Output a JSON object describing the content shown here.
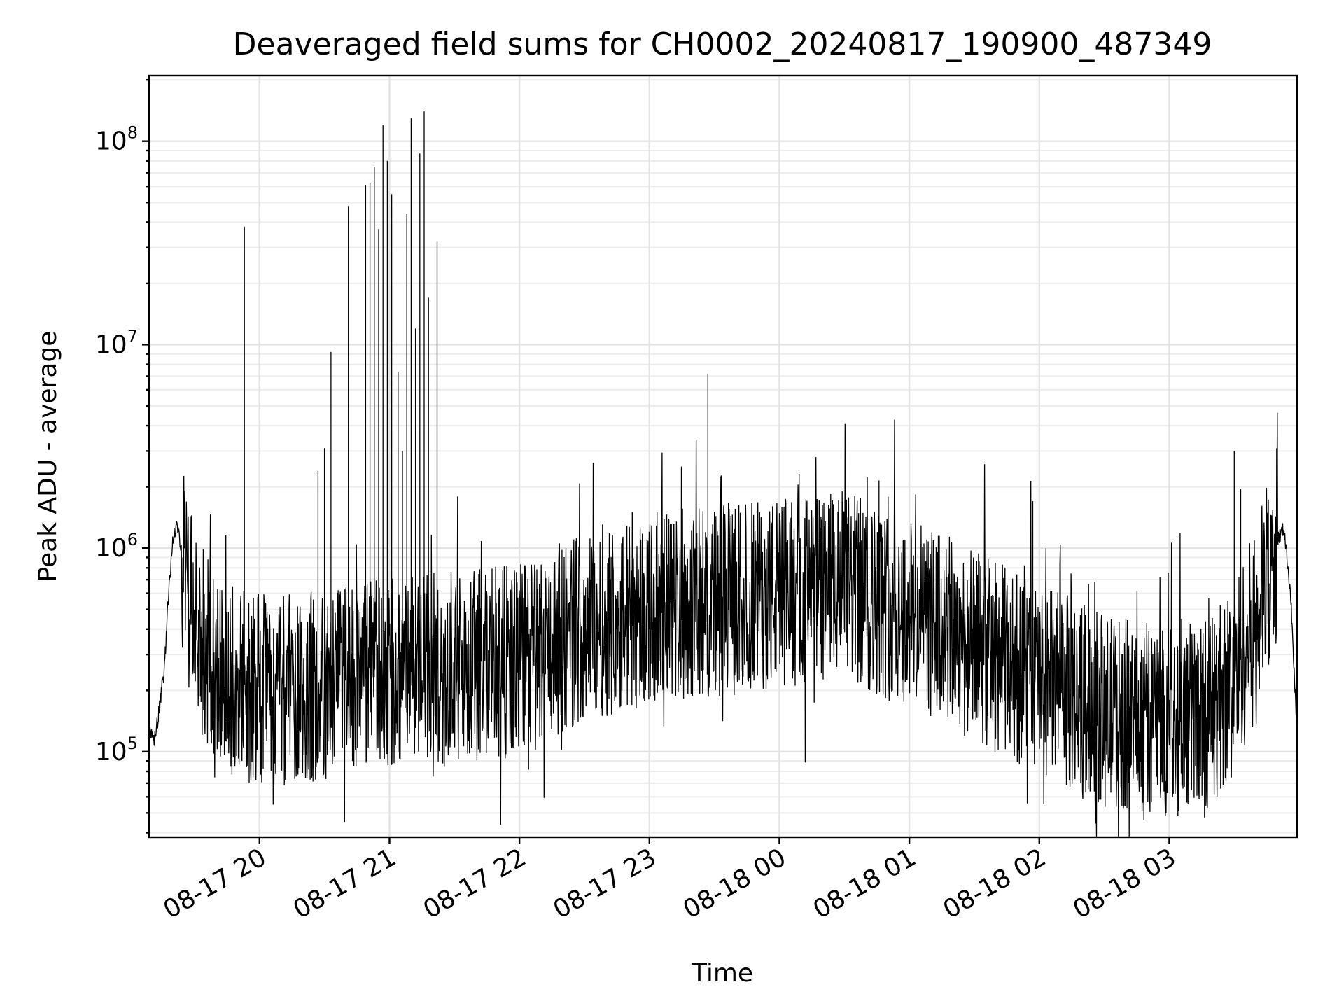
{
  "chart_data": {
    "type": "line",
    "title": "Deaveraged field sums for CH0002_20240817_190900_487349",
    "xlabel": "Time",
    "ylabel": "Peak ADU - average",
    "y_scale": "log",
    "ylim": [
      38000,
      210000000
    ],
    "xlim": [
      "2024-08-17 19:09",
      "2024-08-18 03:59"
    ],
    "grid": "both",
    "legend": "none",
    "line_color": "#000000",
    "x_tick_labels": [
      "08-17 20",
      "08-17 21",
      "08-17 22",
      "08-17 23",
      "08-18 00",
      "08-18 01",
      "08-18 02",
      "08-18 03"
    ],
    "x_tick_times": [
      "2024-08-17 20:00",
      "2024-08-17 21:00",
      "2024-08-17 22:00",
      "2024-08-17 23:00",
      "2024-08-18 00:00",
      "2024-08-18 01:00",
      "2024-08-18 02:00",
      "2024-08-18 03:00"
    ],
    "y_tick_base": "10",
    "y_tick_exponents": [
      "5",
      "6",
      "7",
      "8"
    ],
    "y_ticks": [
      100000,
      1000000,
      10000000,
      100000000
    ],
    "baseline": {
      "x": [
        "2024-08-17 19:09",
        "2024-08-17 19:11",
        "2024-08-17 19:13",
        "2024-08-17 19:16",
        "2024-08-17 19:18",
        "2024-08-17 19:20",
        "2024-08-17 19:22",
        "2024-08-17 19:24",
        "2024-08-17 19:27",
        "2024-08-17 19:30",
        "2024-08-17 19:35",
        "2024-08-17 19:45",
        "2024-08-17 20:00",
        "2024-08-17 20:15",
        "2024-08-17 20:30",
        "2024-08-17 21:00",
        "2024-08-17 21:30",
        "2024-08-17 22:00",
        "2024-08-17 22:30",
        "2024-08-17 23:00",
        "2024-08-17 23:30",
        "2024-08-18 00:00",
        "2024-08-18 00:30",
        "2024-08-18 01:00",
        "2024-08-18 01:30",
        "2024-08-18 02:00",
        "2024-08-18 02:30",
        "2024-08-18 03:00",
        "2024-08-18 03:20",
        "2024-08-18 03:30",
        "2024-08-18 03:40",
        "2024-08-18 03:45",
        "2024-08-18 03:50",
        "2024-08-18 03:53",
        "2024-08-18 03:56",
        "2024-08-18 03:59"
      ],
      "y": [
        130000,
        110000,
        140000,
        250000,
        600000,
        1100000,
        1300000,
        1000000,
        600000,
        400000,
        300000,
        230000,
        200000,
        200000,
        210000,
        240000,
        260000,
        280000,
        420000,
        500000,
        550000,
        600000,
        650000,
        480000,
        330000,
        230000,
        160000,
        140000,
        160000,
        240000,
        420000,
        700000,
        1100000,
        1250000,
        600000,
        120000
      ]
    },
    "spikes": {
      "x": [
        "2024-08-17 19:53",
        "2024-08-17 20:27",
        "2024-08-17 20:30",
        "2024-08-17 20:33",
        "2024-08-17 20:41",
        "2024-08-17 20:49",
        "2024-08-17 20:51",
        "2024-08-17 20:53",
        "2024-08-17 20:55",
        "2024-08-17 20:57",
        "2024-08-17 20:59",
        "2024-08-17 21:01",
        "2024-08-17 21:04",
        "2024-08-17 21:06",
        "2024-08-17 21:08",
        "2024-08-17 21:10",
        "2024-08-17 21:12",
        "2024-08-17 21:14",
        "2024-08-17 21:16",
        "2024-08-17 21:18",
        "2024-08-17 21:22",
        "2024-08-17 23:27",
        "2024-08-18 00:46",
        "2024-08-18 01:57",
        "2024-08-18 03:30",
        "2024-08-18 03:33"
      ],
      "y": [
        38000000,
        2400000,
        3100000,
        9200000,
        48000000,
        61000000,
        62000000,
        75000000,
        37000000,
        120000000,
        80000000,
        55000000,
        7300000,
        3000000,
        44000000,
        130000000,
        12000000,
        87000000,
        140000000,
        17000000,
        32000000,
        7200000,
        2150000,
        1700000,
        3000000,
        1950000
      ]
    }
  }
}
